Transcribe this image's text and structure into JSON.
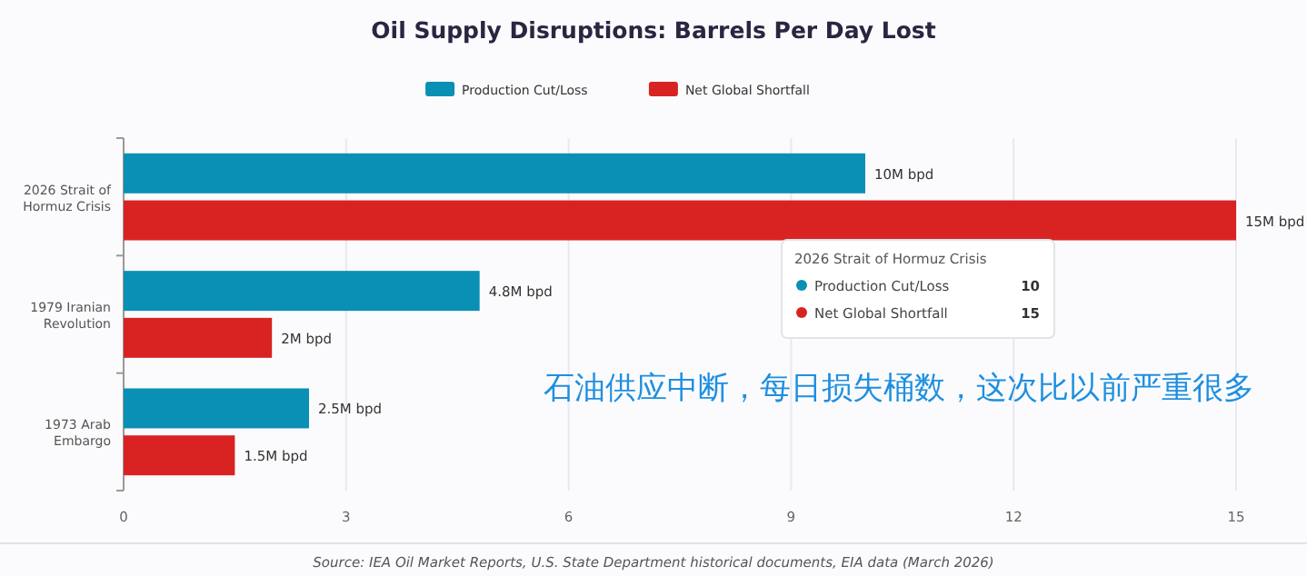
{
  "chart_data": {
    "type": "bar",
    "orientation": "horizontal",
    "title": "Oil Supply Disruptions: Barrels Per Day Lost",
    "categories": [
      "2026 Strait of Hormuz Crisis",
      "1979 Iranian Revolution",
      "1973 Arab Embargo"
    ],
    "series": [
      {
        "name": "Production Cut/Loss",
        "color": "#0a8fb5",
        "values": [
          10,
          4.8,
          2.5
        ],
        "value_labels": [
          "10M bpd",
          "4.8M bpd",
          "2.5M bpd"
        ]
      },
      {
        "name": "Net Global Shortfall",
        "color": "#d92323",
        "values": [
          15,
          2,
          1.5
        ],
        "value_labels": [
          "15M bpd",
          "2M bpd",
          "1.5M bpd"
        ]
      }
    ],
    "xlim": [
      0,
      15
    ],
    "xticks": [
      0,
      3,
      6,
      9,
      12,
      15
    ],
    "grid": "x",
    "legend": "top",
    "annotations": [
      "石油供应中断，每日损失桶数，这次比以前严重很多",
      "2026 Strait of Hormuz Crisis",
      "Production Cut/Loss 10",
      "Net Global Shortfall 15",
      "Source: IEA Oil Market Reports, U.S. State Department historical documents, EIA data (March 2026)"
    ]
  }
}
